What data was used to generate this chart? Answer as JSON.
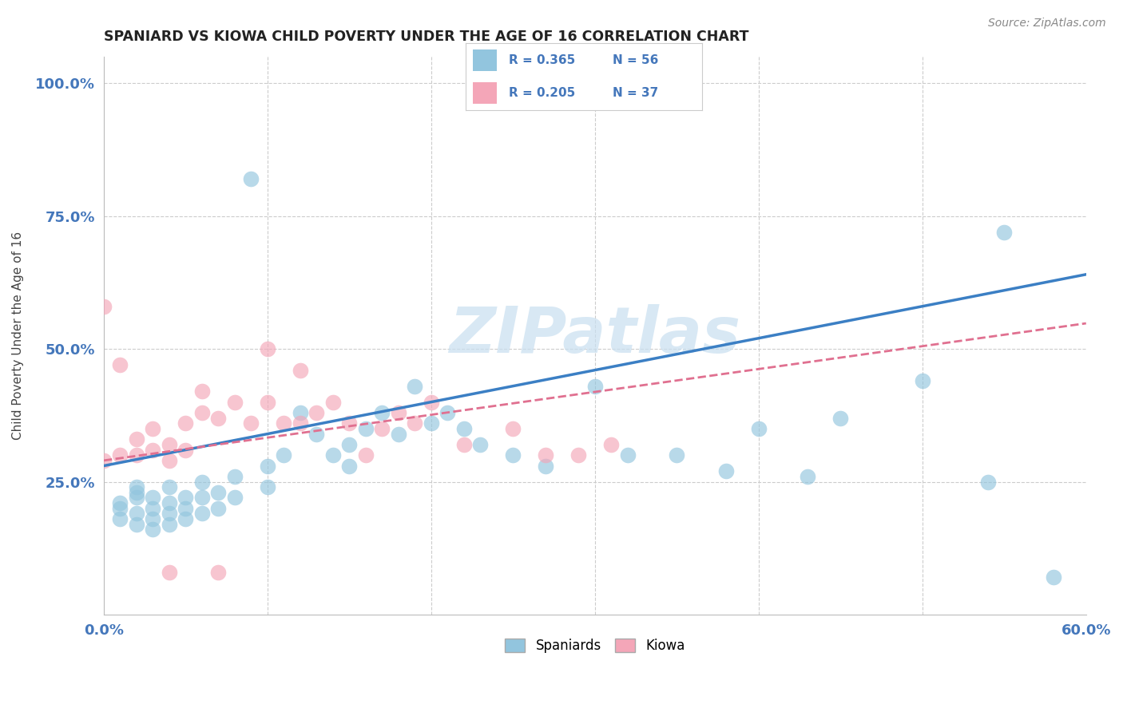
{
  "title": "SPANIARD VS KIOWA CHILD POVERTY UNDER THE AGE OF 16 CORRELATION CHART",
  "source": "Source: ZipAtlas.com",
  "ylabel": "Child Poverty Under the Age of 16",
  "xlim": [
    0.0,
    0.6
  ],
  "ylim": [
    0.0,
    1.05
  ],
  "background_color": "#ffffff",
  "watermark_text": "ZIPatlas",
  "watermark_color": "#c8dff0",
  "legend_r_blue": "R = 0.365",
  "legend_n_blue": "N = 56",
  "legend_r_pink": "R = 0.205",
  "legend_n_pink": "N = 37",
  "blue_color": "#92c5de",
  "pink_color": "#f4a6b8",
  "blue_line_color": "#3b7fc4",
  "pink_line_color": "#e07090",
  "grid_color": "#cccccc",
  "title_color": "#222222",
  "axis_label_color": "#4477bb",
  "blue_line_intercept": 0.28,
  "blue_line_slope": 0.6,
  "pink_line_intercept": 0.29,
  "pink_line_slope": 0.43,
  "spaniards_x": [
    0.01,
    0.01,
    0.01,
    0.02,
    0.02,
    0.02,
    0.02,
    0.02,
    0.03,
    0.03,
    0.03,
    0.03,
    0.04,
    0.04,
    0.04,
    0.04,
    0.05,
    0.05,
    0.05,
    0.06,
    0.06,
    0.06,
    0.07,
    0.07,
    0.08,
    0.08,
    0.09,
    0.1,
    0.1,
    0.11,
    0.12,
    0.13,
    0.14,
    0.15,
    0.15,
    0.16,
    0.17,
    0.18,
    0.19,
    0.2,
    0.21,
    0.22,
    0.23,
    0.25,
    0.27,
    0.3,
    0.32,
    0.35,
    0.38,
    0.4,
    0.43,
    0.45,
    0.5,
    0.54,
    0.55,
    0.58
  ],
  "spaniards_y": [
    0.18,
    0.2,
    0.21,
    0.17,
    0.19,
    0.22,
    0.23,
    0.24,
    0.16,
    0.18,
    0.2,
    0.22,
    0.17,
    0.19,
    0.21,
    0.24,
    0.18,
    0.2,
    0.22,
    0.19,
    0.22,
    0.25,
    0.2,
    0.23,
    0.22,
    0.26,
    0.82,
    0.24,
    0.28,
    0.3,
    0.38,
    0.34,
    0.3,
    0.28,
    0.32,
    0.35,
    0.38,
    0.34,
    0.43,
    0.36,
    0.38,
    0.35,
    0.32,
    0.3,
    0.28,
    0.43,
    0.3,
    0.3,
    0.27,
    0.35,
    0.26,
    0.37,
    0.44,
    0.25,
    0.72,
    0.07
  ],
  "kiowa_x": [
    0.0,
    0.0,
    0.01,
    0.01,
    0.02,
    0.02,
    0.03,
    0.03,
    0.04,
    0.04,
    0.05,
    0.05,
    0.06,
    0.06,
    0.07,
    0.08,
    0.09,
    0.1,
    0.11,
    0.12,
    0.13,
    0.14,
    0.15,
    0.16,
    0.17,
    0.18,
    0.19,
    0.2,
    0.22,
    0.25,
    0.27,
    0.29,
    0.31,
    0.04,
    0.07,
    0.1,
    0.12
  ],
  "kiowa_y": [
    0.29,
    0.58,
    0.3,
    0.47,
    0.3,
    0.33,
    0.31,
    0.35,
    0.29,
    0.32,
    0.31,
    0.36,
    0.38,
    0.42,
    0.37,
    0.4,
    0.36,
    0.4,
    0.36,
    0.36,
    0.38,
    0.4,
    0.36,
    0.3,
    0.35,
    0.38,
    0.36,
    0.4,
    0.32,
    0.35,
    0.3,
    0.3,
    0.32,
    0.08,
    0.08,
    0.5,
    0.46
  ]
}
